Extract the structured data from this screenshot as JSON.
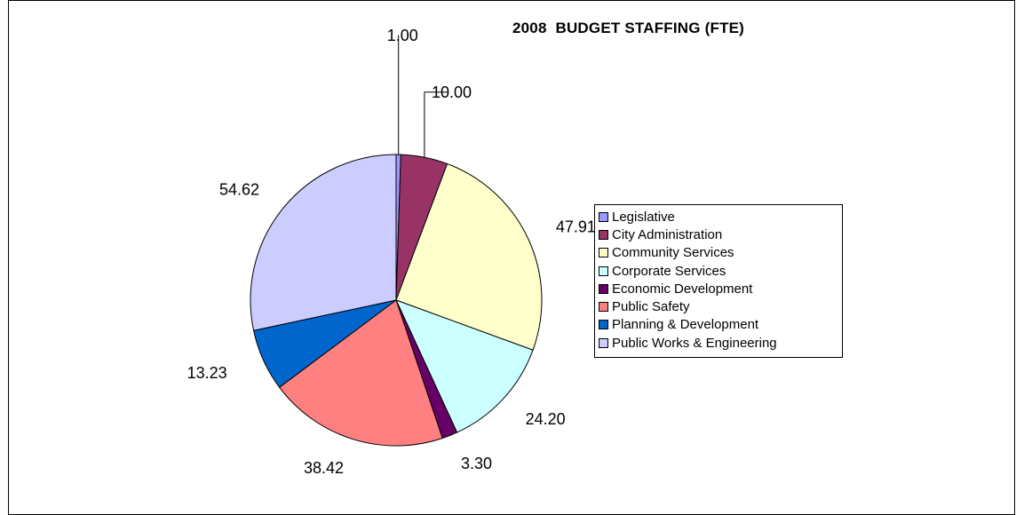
{
  "chart_data": {
    "type": "pie",
    "title": "2008  BUDGET STAFFING (FTE)",
    "legend_position": "right",
    "categories": [
      "Legislative",
      "City Administration",
      "Community Services",
      "Corporate Services",
      "Economic Development",
      "Public Safety",
      "Planning & Development",
      "Public Works & Engineering"
    ],
    "values": [
      1.0,
      10.0,
      47.91,
      24.2,
      3.3,
      38.42,
      13.23,
      54.62
    ],
    "data_labels": [
      "1.00",
      "10.00",
      "47.91",
      "24.20",
      "3.30",
      "38.42",
      "13.23",
      "54.62"
    ],
    "colors": [
      "#9999FF",
      "#993366",
      "#FFFFCC",
      "#CCFFFF",
      "#660066",
      "#FF8080",
      "#0066CC",
      "#CCCCFF"
    ]
  }
}
